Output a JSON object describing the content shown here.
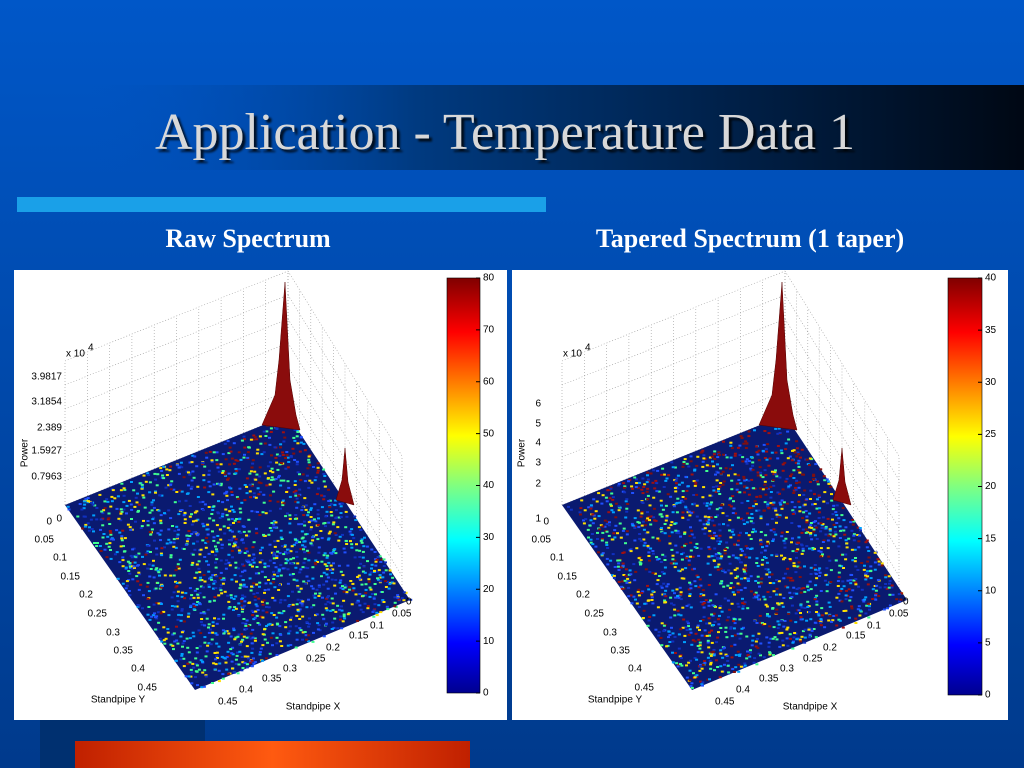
{
  "title": "Application - Temperature Data 1",
  "panels": [
    {
      "heading": "Raw Spectrum",
      "z_label": "Power",
      "y_label": "Standpipe Y",
      "x_label": "Standpipe X",
      "exponent": {
        "base": "x 10",
        "power": "4"
      },
      "z_ticks": [
        0,
        0.7963,
        1.5927,
        2.389,
        3.1854,
        3.9817
      ],
      "y_ticks": [
        0,
        0.05,
        0.1,
        0.15,
        0.2,
        0.25,
        0.3,
        0.35,
        0.4,
        0.45
      ],
      "x_ticks": [
        0,
        0.05,
        0.1,
        0.15,
        0.2,
        0.25,
        0.3,
        0.35,
        0.4,
        0.45
      ],
      "colorbar_ticks": [
        0,
        10,
        20,
        30,
        40,
        50,
        60,
        70,
        80
      ]
    },
    {
      "heading": "Tapered Spectrum (1 taper)",
      "z_label": "Power",
      "y_label": "Standpipe Y",
      "x_label": "Standpipe X",
      "exponent": {
        "base": "x 10",
        "power": "4"
      },
      "z_ticks": [
        1,
        2,
        3,
        4,
        5,
        6
      ],
      "y_ticks": [
        0,
        0.05,
        0.1,
        0.15,
        0.2,
        0.25,
        0.3,
        0.35,
        0.4,
        0.45
      ],
      "x_ticks": [
        0,
        0.05,
        0.1,
        0.15,
        0.2,
        0.25,
        0.3,
        0.35,
        0.4,
        0.45
      ],
      "colorbar_ticks": [
        0,
        5,
        10,
        15,
        20,
        25,
        30,
        35,
        40
      ]
    }
  ]
}
